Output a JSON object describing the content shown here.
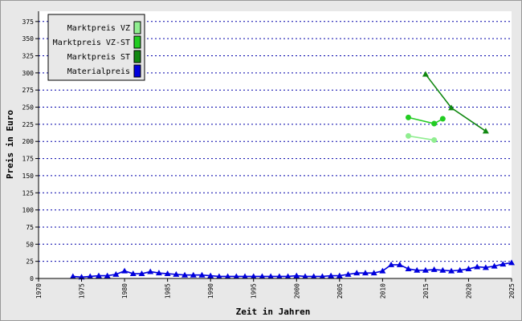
{
  "chart_data": {
    "type": "line",
    "xlabel": "Zeit in Jahren",
    "ylabel": "Preis in Euro",
    "xlim": [
      1970,
      2025
    ],
    "xticks": [
      1970,
      1975,
      1980,
      1985,
      1990,
      1995,
      2000,
      2005,
      2010,
      2015,
      2020,
      2025
    ],
    "ylim": [
      0,
      390
    ],
    "yticks": [
      0,
      25,
      50,
      75,
      100,
      125,
      150,
      175,
      200,
      225,
      250,
      275,
      300,
      325,
      350,
      375
    ],
    "grid": true,
    "legend": "upper left",
    "series": [
      {
        "name": "Marktpreis VZ",
        "color": "#90ee90",
        "marker": "circle",
        "x": [
          2013,
          2016
        ],
        "values": [
          208,
          202
        ]
      },
      {
        "name": "Marktpreis VZ-ST",
        "color": "#22cc22",
        "marker": "circle",
        "x": [
          2013,
          2016,
          2017
        ],
        "values": [
          235,
          226,
          233
        ]
      },
      {
        "name": "Marktpreis ST",
        "color": "#118811",
        "marker": "triangle",
        "x": [
          2015,
          2018,
          2022
        ],
        "values": [
          298,
          249,
          215
        ]
      },
      {
        "name": "Materialpreis",
        "color": "#0000dd",
        "marker": "triangle",
        "x": [
          1974,
          1975,
          1976,
          1977,
          1978,
          1979,
          1980,
          1981,
          1982,
          1983,
          1984,
          1985,
          1986,
          1987,
          1988,
          1989,
          1990,
          1991,
          1992,
          1993,
          1994,
          1995,
          1996,
          1997,
          1998,
          1999,
          2000,
          2001,
          2002,
          2003,
          2004,
          2005,
          2006,
          2007,
          2008,
          2009,
          2010,
          2011,
          2012,
          2013,
          2014,
          2015,
          2016,
          2017,
          2018,
          2019,
          2020,
          2021,
          2022,
          2023,
          2024,
          2025
        ],
        "values": [
          3,
          2,
          3,
          4,
          4,
          6,
          11,
          7,
          7,
          10,
          8,
          7,
          6,
          5,
          5,
          5,
          4,
          3,
          3,
          3,
          3,
          3,
          3,
          3,
          3,
          3,
          4,
          3,
          3,
          3,
          4,
          4,
          6,
          8,
          8,
          8,
          11,
          20,
          20,
          14,
          12,
          12,
          13,
          12,
          11,
          12,
          14,
          17,
          16,
          18,
          21,
          23
        ]
      }
    ]
  }
}
